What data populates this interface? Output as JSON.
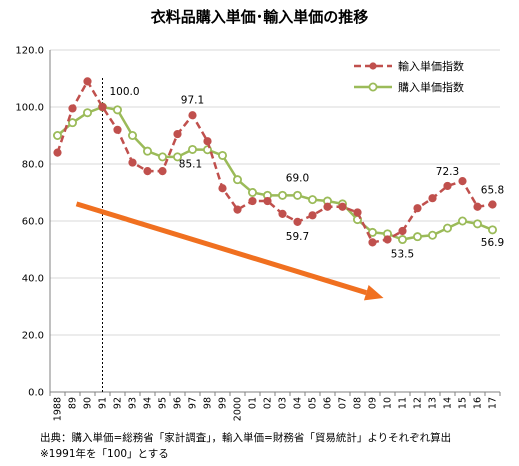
{
  "chart_data": {
    "type": "line",
    "title": "衣料品購入単価･輸入単価の推移",
    "x": [
      "1988",
      "89",
      "90",
      "91",
      "92",
      "93",
      "94",
      "95",
      "96",
      "97",
      "98",
      "99",
      "2000",
      "01",
      "02",
      "03",
      "04",
      "05",
      "06",
      "07",
      "08",
      "09",
      "10",
      "11",
      "12",
      "13",
      "14",
      "15",
      "16",
      "17"
    ],
    "ylim": [
      0,
      120
    ],
    "yticks": [
      "0.0",
      "20.0",
      "40.0",
      "60.0",
      "80.0",
      "100.0",
      "120.0"
    ],
    "grid": true,
    "legend": "top-right",
    "series": [
      {
        "name": "輸入単価指数",
        "color": "#c0504d",
        "style": "dashed",
        "marker": "circle",
        "values": [
          84.0,
          99.5,
          109.0,
          100.0,
          92.0,
          80.5,
          77.5,
          77.5,
          90.5,
          97.1,
          88.0,
          71.5,
          64.0,
          67.0,
          67.0,
          62.5,
          59.7,
          62.0,
          65.0,
          65.0,
          63.0,
          52.5,
          53.5,
          56.5,
          64.5,
          68.0,
          72.3,
          74.0,
          65.0,
          65.8
        ]
      },
      {
        "name": "購入単価指数",
        "color": "#9bbb59",
        "style": "solid",
        "marker": "circle-open",
        "values": [
          90.0,
          94.5,
          98.0,
          100.0,
          99.0,
          90.0,
          84.5,
          82.5,
          82.5,
          85.1,
          85.0,
          83.0,
          74.5,
          70.0,
          69.0,
          69.0,
          69.0,
          67.5,
          67.0,
          66.0,
          60.5,
          56.0,
          55.5,
          53.5,
          54.5,
          55.0,
          57.5,
          60.0,
          59.0,
          56.9
        ]
      }
    ],
    "data_labels": [
      {
        "series": 0,
        "index": 3,
        "text": "100.0"
      },
      {
        "series": 0,
        "index": 9,
        "text": "97.1"
      },
      {
        "series": 1,
        "index": 9,
        "text": "85.1"
      },
      {
        "series": 1,
        "index": 16,
        "text": "69.0"
      },
      {
        "series": 0,
        "index": 16,
        "text": "59.7"
      },
      {
        "series": 1,
        "index": 23,
        "text": "53.5"
      },
      {
        "series": 0,
        "index": 26,
        "text": "72.3"
      },
      {
        "series": 0,
        "index": 29,
        "text": "65.8"
      },
      {
        "series": 1,
        "index": 29,
        "text": "56.9"
      }
    ],
    "reference_line_at": "91",
    "trend_arrow": {
      "color": "#f07020",
      "from": {
        "x": "91",
        "y": 66
      },
      "to": {
        "x": "10",
        "y": 33
      }
    }
  },
  "notes": {
    "source": "出典：購入単価=総務省「家計調査」，輸入単価=財務省「貿易統計」よりそれぞれ算出",
    "base": "※1991年を「100」とする"
  }
}
